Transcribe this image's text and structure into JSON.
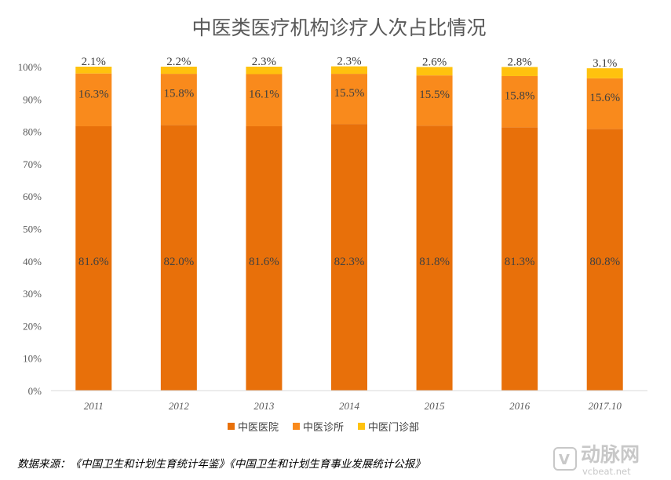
{
  "chart_data": {
    "type": "bar",
    "stacked": true,
    "title": "中医类医疗机构诊疗人次占比情况",
    "categories": [
      "2011",
      "2012",
      "2013",
      "2014",
      "2015",
      "2016",
      "2017.10"
    ],
    "series": [
      {
        "name": "中医医院",
        "color": "#E8700A",
        "values": [
          81.6,
          82.0,
          81.6,
          82.3,
          81.8,
          81.3,
          80.8
        ],
        "labels": [
          "81.6%",
          "82.0%",
          "81.6%",
          "82.3%",
          "81.8%",
          "81.3%",
          "80.8%"
        ]
      },
      {
        "name": "中医诊所",
        "color": "#F98A1C",
        "values": [
          16.3,
          15.8,
          16.1,
          15.5,
          15.5,
          15.8,
          15.6
        ],
        "labels": [
          "16.3%",
          "15.8%",
          "16.1%",
          "15.5%",
          "15.5%",
          "15.8%",
          "15.6%"
        ]
      },
      {
        "name": "中医门诊部",
        "color": "#FFC20E",
        "values": [
          2.1,
          2.2,
          2.3,
          2.3,
          2.6,
          2.8,
          3.1
        ],
        "labels": [
          "2.1%",
          "2.2%",
          "2.3%",
          "2.3%",
          "2.6%",
          "2.8%",
          "3.1%"
        ]
      }
    ],
    "ylim": [
      0,
      100
    ],
    "yticks": [
      "0%",
      "10%",
      "20%",
      "30%",
      "40%",
      "50%",
      "60%",
      "70%",
      "80%",
      "90%",
      "100%"
    ],
    "grid": false,
    "legend_position": "bottom"
  },
  "source_note": "数据来源：《中国卫生和计划生育统计年鉴》《中国卫生和计划生育事业发展统计公报》",
  "watermark": {
    "text": "动脉网",
    "url": "vcbeat.net"
  }
}
